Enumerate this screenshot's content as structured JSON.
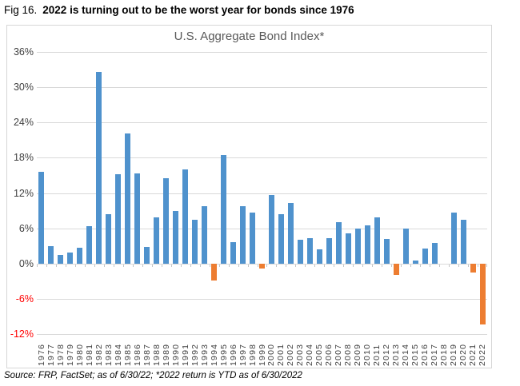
{
  "figure": {
    "fig_label": "Fig 16.",
    "title": "2022 is turning out to be the worst year for bonds since 1976"
  },
  "footer": {
    "source": "Source: FRP, FactSet; as of 6/30/22; *2022 return is YTD as of 6/30/2022"
  },
  "chart_data": {
    "type": "bar",
    "title": "U.S. Aggregate Bond Index*",
    "categories": [
      "1976",
      "1977",
      "1978",
      "1979",
      "1980",
      "1981",
      "1982",
      "1983",
      "1984",
      "1985",
      "1986",
      "1987",
      "1988",
      "1989",
      "1990",
      "1991",
      "1992",
      "1993",
      "1994",
      "1995",
      "1996",
      "1997",
      "1998",
      "1999",
      "2000",
      "2001",
      "2002",
      "2003",
      "2004",
      "2005",
      "2006",
      "2007",
      "2008",
      "2009",
      "2010",
      "2011",
      "2012",
      "2013",
      "2014",
      "2015",
      "2016",
      "2017",
      "2018",
      "2019",
      "2020",
      "2021",
      "2022"
    ],
    "values": [
      15.6,
      3.0,
      1.4,
      1.9,
      2.7,
      6.3,
      32.6,
      8.4,
      15.2,
      22.1,
      15.3,
      2.8,
      7.9,
      14.5,
      9.0,
      16.0,
      7.4,
      9.8,
      -2.9,
      18.5,
      3.6,
      9.7,
      8.7,
      -0.8,
      11.6,
      8.4,
      10.3,
      4.1,
      4.3,
      2.4,
      4.3,
      7.0,
      5.2,
      5.9,
      6.5,
      7.8,
      4.2,
      -2.0,
      6.0,
      0.5,
      2.6,
      3.5,
      0.0,
      8.7,
      7.5,
      -1.5,
      -10.3
    ],
    "xlabel": "",
    "ylabel": "",
    "ylim": [
      -12,
      36
    ],
    "ytick_values": [
      36,
      30,
      24,
      18,
      12,
      6,
      0,
      -6,
      -12
    ],
    "ytick_labels": [
      "36%",
      "30%",
      "24%",
      "18%",
      "12%",
      "6%",
      "0%",
      "-6%",
      "-12%"
    ],
    "grid": true,
    "legend": false,
    "bar_positive_color": "#4f92cd",
    "bar_negative_color": "#ed7d31",
    "axis_label_color": "#404040",
    "negative_label_color": "#ff0000",
    "gridline_color": "#d9d9d9"
  }
}
